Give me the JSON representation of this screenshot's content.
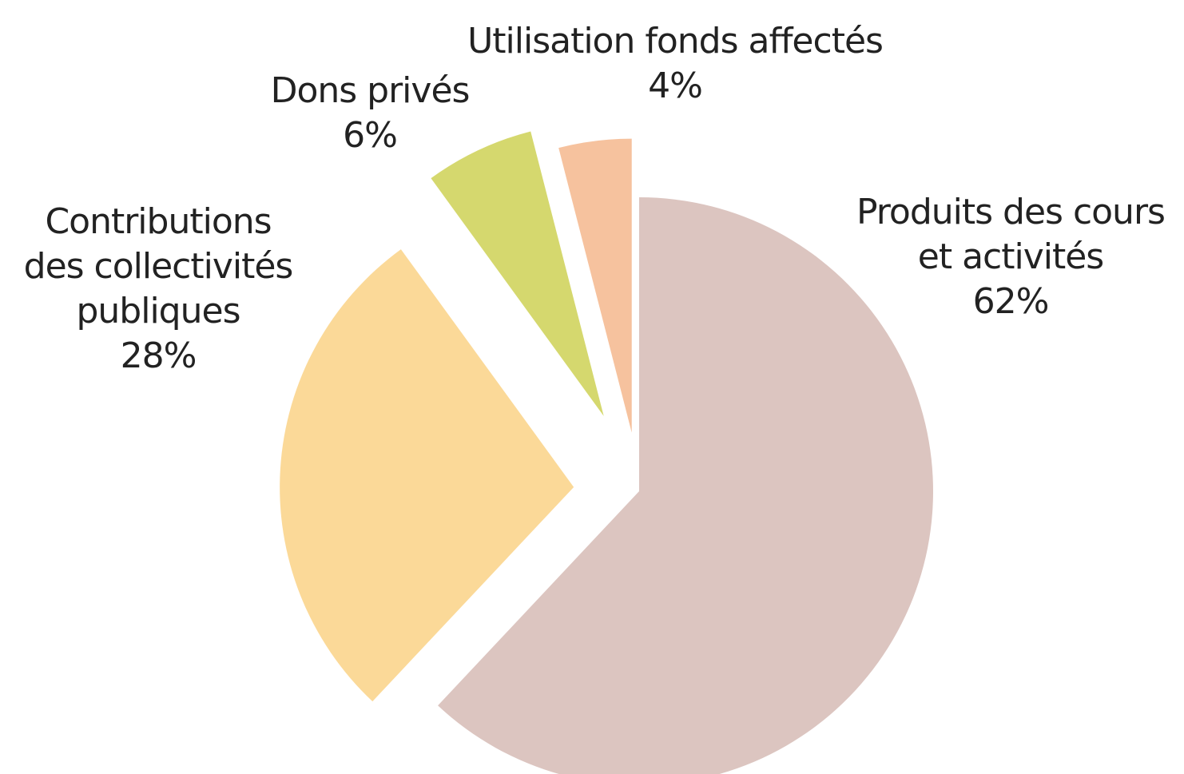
{
  "chart_data": {
    "type": "pie",
    "categories": [
      "Produits des cours\net activités",
      "Contributions\ndes collectivités\npubliques",
      "Dons privés",
      "Utilisation fonds affectés"
    ],
    "values": [
      62,
      28,
      6,
      4
    ],
    "value_labels": [
      "62%",
      "28%",
      "6%",
      "4%"
    ],
    "colors": [
      "#dcc5c0",
      "#fbd998",
      "#d5d86e",
      "#f6c29e"
    ]
  }
}
